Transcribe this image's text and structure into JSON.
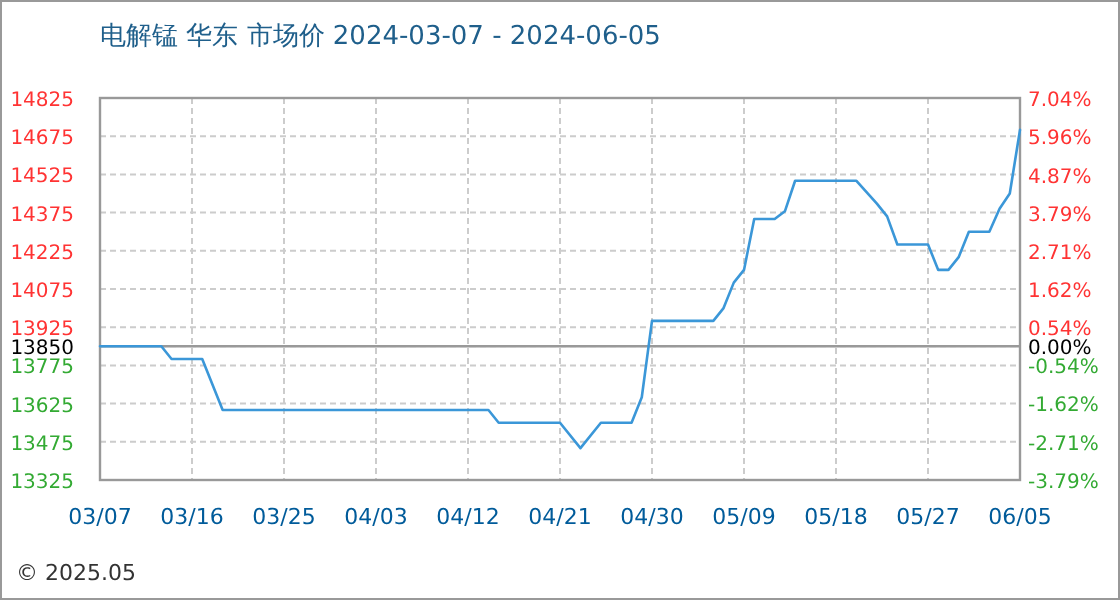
{
  "chart_data": {
    "type": "line",
    "title": "电解锰 华东 市场价 2024-03-07 - 2024-06-05",
    "x": [
      "--03-07",
      "--03-13",
      "--03-14",
      "--03-17",
      "--03-19",
      "--04-14",
      "--04-15",
      "--04-21",
      "--04-23",
      "--04-25",
      "--04-28",
      "--04-29",
      "--04-30",
      "--05-06",
      "--05-07",
      "--05-08",
      "--05-09",
      "--05-10",
      "--05-12",
      "--05-13",
      "--05-14",
      "--05-20",
      "--05-22",
      "--05-23",
      "--05-24",
      "--05-27",
      "--05-28",
      "--05-29",
      "--05-30",
      "--05-31",
      "--06-02",
      "--06-03",
      "--06-04",
      "--06-05"
    ],
    "series": [
      {
        "color": "#3b97d8",
        "values": [
          13850,
          13850,
          13800,
          13800,
          13600,
          13600,
          13550,
          13550,
          13450,
          13550,
          13550,
          13650,
          13950,
          13950,
          14000,
          14100,
          14150,
          14350,
          14350,
          14380,
          14500,
          14500,
          14410,
          14360,
          14250,
          14250,
          14150,
          14150,
          14200,
          14300,
          14300,
          14390,
          14450,
          14700
        ]
      }
    ],
    "xlim": [
      "--03-07",
      "--06-05"
    ],
    "xticks": [
      {
        "value": "--03-07",
        "label": "03/07"
      },
      {
        "value": "--03-16",
        "label": "03/16"
      },
      {
        "value": "--03-25",
        "label": "03/25"
      },
      {
        "value": "--04-03",
        "label": "04/03"
      },
      {
        "value": "--04-12",
        "label": "04/12"
      },
      {
        "value": "--04-21",
        "label": "04/21"
      },
      {
        "value": "--04-30",
        "label": "04/30"
      },
      {
        "value": "--05-09",
        "label": "05/09"
      },
      {
        "value": "--05-18",
        "label": "05/18"
      },
      {
        "value": "--05-27",
        "label": "05/27"
      },
      {
        "value": "--06-05",
        "label": "06/05"
      }
    ],
    "ylim": [
      13325,
      14825
    ],
    "yticks": [
      13325,
      13475,
      13625,
      13775,
      13850,
      13925,
      14075,
      14225,
      14375,
      14525,
      14675,
      14825
    ],
    "y2lim": [
      -3.79,
      7.04
    ],
    "y2ticks": [
      {
        "value": -3.79,
        "label": "-3.79%"
      },
      {
        "value": -2.71,
        "label": "-2.71%"
      },
      {
        "value": -1.62,
        "label": "-1.62%"
      },
      {
        "value": -0.54,
        "label": "-0.54%"
      },
      {
        "value": 0,
        "label": "0.00%"
      },
      {
        "value": 0.54,
        "label": "0.54%"
      },
      {
        "value": 1.62,
        "label": "1.62%"
      },
      {
        "value": 2.71,
        "label": "2.71%"
      },
      {
        "value": 3.79,
        "label": "3.79%"
      },
      {
        "value": 4.87,
        "label": "4.87%"
      },
      {
        "value": 5.96,
        "label": "5.96%"
      },
      {
        "value": 7.04,
        "label": "7.04%"
      }
    ],
    "ref_lines": [
      {
        "axis": "y",
        "value": 13850,
        "color": "#999999"
      }
    ],
    "annotations": [
      "© 2025.05"
    ],
    "grid": true,
    "marker": "none",
    "line_style": "solid"
  }
}
